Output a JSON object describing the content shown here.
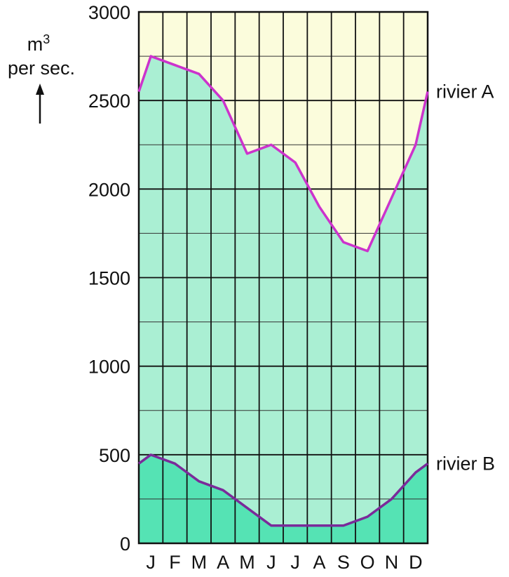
{
  "chart_data": {
    "type": "area",
    "title": "",
    "ylabel": {
      "line1": "m",
      "superscript": "3",
      "line2": "per sec."
    },
    "xlabel": "",
    "ylim": [
      0,
      3000
    ],
    "y_ticks": [
      "0",
      "500",
      "1000",
      "1500",
      "2000",
      "2500",
      "3000"
    ],
    "categories": [
      "J",
      "F",
      "M",
      "A",
      "M",
      "J",
      "J",
      "A",
      "S",
      "O",
      "N",
      "D"
    ],
    "grid": true,
    "series": [
      {
        "name": "rivier A",
        "line_color": "#cc33cc",
        "fill_color": "#aaefd3",
        "x": [
          0,
          0.5,
          1.5,
          2.5,
          3.5,
          4.5,
          5.5,
          6.5,
          7.5,
          8.5,
          9.5,
          10.5,
          11.5,
          12
        ],
        "values": [
          2550,
          2750,
          2700,
          2650,
          2500,
          2200,
          2250,
          2150,
          1900,
          1700,
          1650,
          1950,
          2250,
          2550
        ]
      },
      {
        "name": "rivier B",
        "line_color": "#7a2a9a",
        "fill_color": "#55e3b4",
        "x": [
          0,
          0.5,
          1.5,
          2.5,
          3.5,
          4.5,
          5.5,
          6.5,
          7.5,
          8.5,
          9.5,
          10.5,
          11.5,
          12
        ],
        "values": [
          450,
          500,
          450,
          350,
          300,
          200,
          100,
          100,
          100,
          100,
          150,
          250,
          400,
          450
        ]
      }
    ],
    "background_color": "#fbfcdc"
  }
}
